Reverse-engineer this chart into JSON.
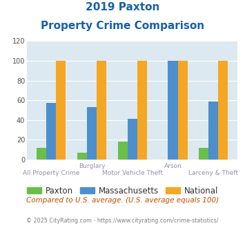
{
  "title_line1": "2019 Paxton",
  "title_line2": "Property Crime Comparison",
  "categories": [
    "All Property Crime",
    "Burglary",
    "Motor Vehicle Theft",
    "Arson",
    "Larceny & Theft"
  ],
  "x_label_top": [
    "",
    "Burglary",
    "",
    "Arson",
    ""
  ],
  "x_label_bottom": [
    "All Property Crime",
    "",
    "Motor Vehicle Theft",
    "",
    "Larceny & Theft"
  ],
  "paxton": [
    12,
    7,
    18,
    0,
    12
  ],
  "massachusetts": [
    57,
    53,
    41,
    100,
    59
  ],
  "national": [
    100,
    100,
    100,
    100,
    100
  ],
  "paxton_color": "#6abf4b",
  "massachusetts_color": "#4d8fcc",
  "national_color": "#f5a623",
  "ylim": [
    0,
    120
  ],
  "yticks": [
    0,
    20,
    40,
    60,
    80,
    100,
    120
  ],
  "bg_color": "#dce9f0",
  "title_color": "#1a5fa8",
  "xlabel_color": "#9090b0",
  "note_text": "Compared to U.S. average. (U.S. average equals 100)",
  "note_color": "#c05000",
  "footer_text": "© 2025 CityRating.com - https://www.cityrating.com/crime-statistics/",
  "footer_color": "#808080",
  "legend_labels": [
    "Paxton",
    "Massachusetts",
    "National"
  ]
}
